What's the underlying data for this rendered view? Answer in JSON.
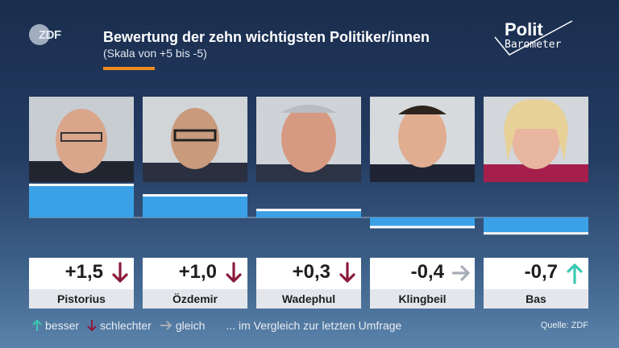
{
  "header": {
    "logo_text": "ZDF",
    "title": "Bewertung der zehn wichtigsten Politiker/innen",
    "subtitle": "(Skala von +5 bis -5)",
    "brand_line1": "Polit",
    "brand_line2": "Barometer"
  },
  "colors": {
    "bar": "#3aa1e6",
    "accent": "#f08a1c",
    "up": "#3cc9b4",
    "down": "#8a1b3c",
    "same": "#a7adb6"
  },
  "chart_data": {
    "type": "bar",
    "title": "Bewertung der zehn wichtigsten Politiker/innen",
    "subtitle": "(Skala von +5 bis -5)",
    "categories": [
      "Pistorius",
      "Özdemir",
      "Wadephul",
      "Klingbeil",
      "Bas"
    ],
    "values": [
      1.5,
      1.0,
      0.3,
      -0.4,
      -0.7
    ],
    "labels": [
      "+1,5",
      "+1,0",
      "+0,3",
      "-0,4",
      "-0,7"
    ],
    "trend": [
      "down",
      "down",
      "down",
      "same",
      "up"
    ],
    "ylim": [
      -5,
      5
    ]
  },
  "legend": {
    "up": "besser",
    "down": "schlechter",
    "same": "gleich",
    "note": "... im Vergleich zur letzten Umfrage"
  },
  "source": "Quelle: ZDF"
}
